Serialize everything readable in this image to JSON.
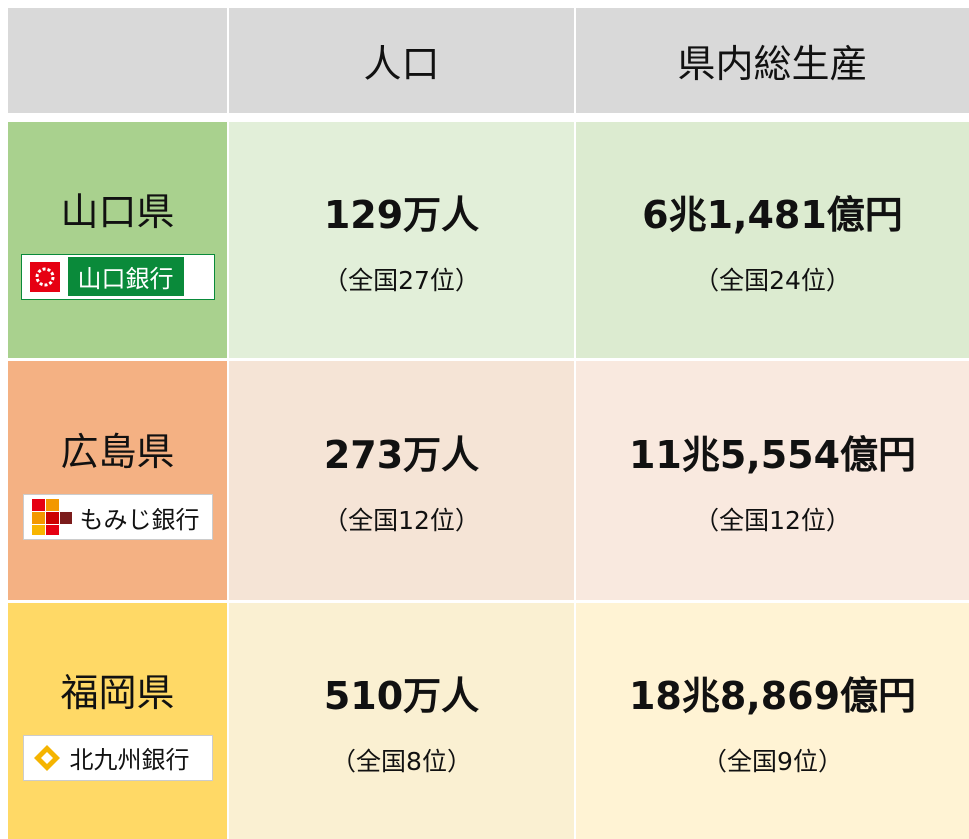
{
  "table": {
    "columns": [
      "人口",
      "県内総生産"
    ],
    "rows": [
      {
        "prefecture": "山口県",
        "bank": "山口銀行",
        "population": "129万人",
        "population_rank": "（全国27位）",
        "gdp": "6兆1,481億円",
        "gdp_rank": "（全国24位）"
      },
      {
        "prefecture": "広島県",
        "bank": "もみじ銀行",
        "population": "273万人",
        "population_rank": "（全国12位）",
        "gdp": "11兆5,554億円",
        "gdp_rank": "（全国12位）"
      },
      {
        "prefecture": "福岡県",
        "bank": "北九州銀行",
        "population": "510万人",
        "population_rank": "（全国8位）",
        "gdp": "18兆8,869億円",
        "gdp_rank": "（全国9位）"
      }
    ]
  }
}
